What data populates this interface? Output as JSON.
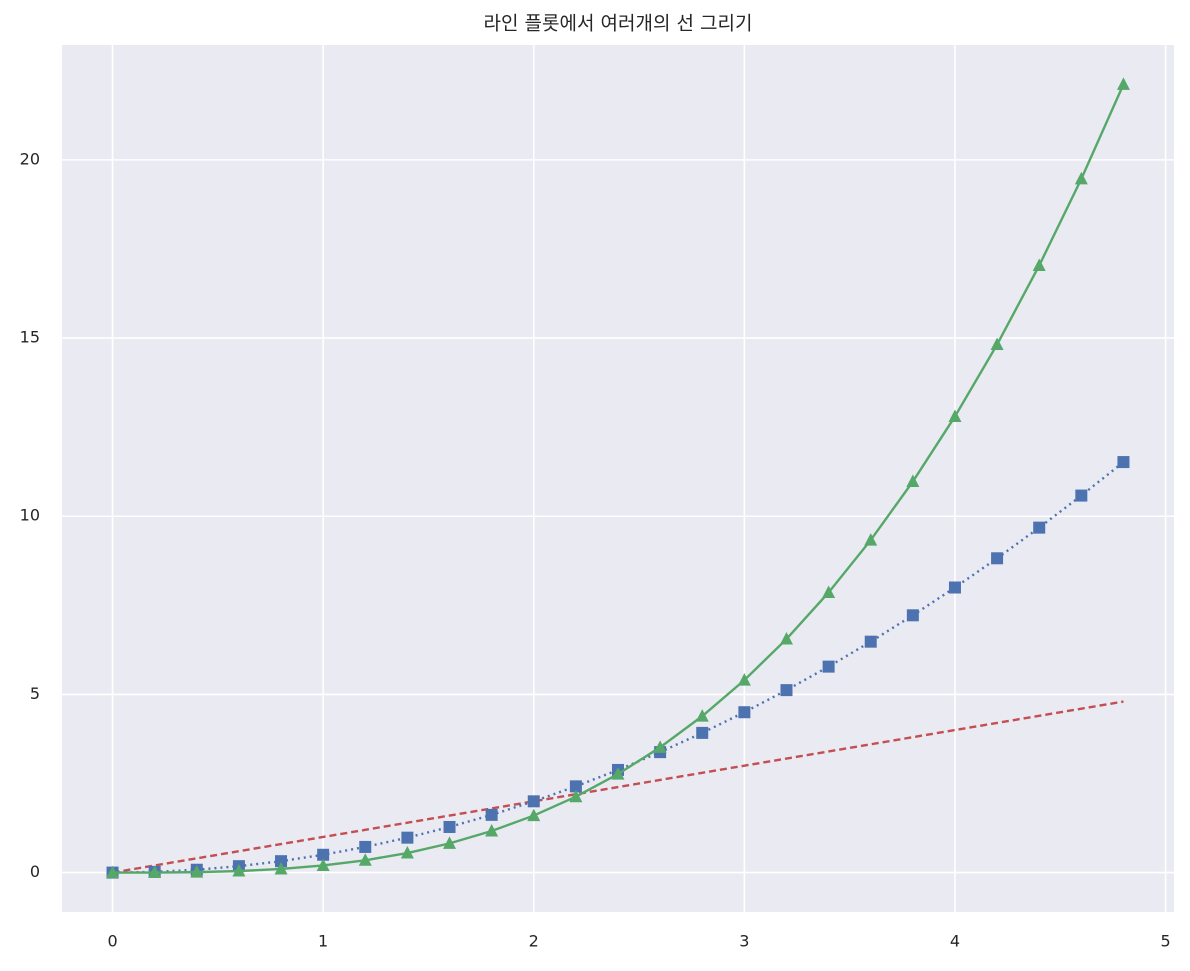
{
  "chart_data": {
    "type": "line",
    "title": "라인 플롯에서 여러개의 선 그리기",
    "x": [
      0,
      0.2,
      0.4,
      0.6,
      0.8,
      1,
      1.2,
      1.4,
      1.6,
      1.8,
      2,
      2.2,
      2.4,
      2.6,
      2.8,
      3,
      3.2,
      3.4,
      3.6,
      3.8,
      4,
      4.2,
      4.4,
      4.6,
      4.8
    ],
    "series": [
      {
        "color": "#c44e52",
        "linestyle": "dashed",
        "marker": "none",
        "values": [
          0,
          0.2,
          0.4,
          0.6,
          0.8,
          1,
          1.2,
          1.4,
          1.6,
          1.8,
          2,
          2.2,
          2.4,
          2.6,
          2.8,
          3,
          3.2,
          3.4,
          3.6,
          3.8,
          4,
          4.2,
          4.4,
          4.6,
          4.8
        ]
      },
      {
        "color": "#4c72b0",
        "linestyle": "dotted",
        "marker": "square",
        "values": [
          0,
          0.02,
          0.08,
          0.18,
          0.32,
          0.5,
          0.72,
          0.98,
          1.28,
          1.62,
          2,
          2.42,
          2.88,
          3.38,
          3.92,
          4.5,
          5.12,
          5.78,
          6.48,
          7.22,
          8,
          8.82,
          9.68,
          10.58,
          11.52
        ]
      },
      {
        "color": "#55a868",
        "linestyle": "solid",
        "marker": "triangle",
        "values": [
          0,
          0.0016,
          0.0128,
          0.0432,
          0.1024,
          0.2,
          0.3456,
          0.5488,
          0.8192,
          1.1664,
          1.6,
          2.1296,
          2.7648,
          3.5152,
          4.3904,
          5.4,
          6.5536,
          7.8608,
          9.3312,
          10.9744,
          12.8,
          14.8176,
          17.0368,
          19.4672,
          22.1184
        ]
      }
    ],
    "xlim": [
      -0.24,
      5.04
    ],
    "xticks": [
      0,
      1,
      2,
      3,
      4,
      5
    ],
    "ylim": [
      -1.106,
      23.224
    ],
    "yticks": [
      0,
      5,
      10,
      15,
      20
    ],
    "grid": true
  }
}
